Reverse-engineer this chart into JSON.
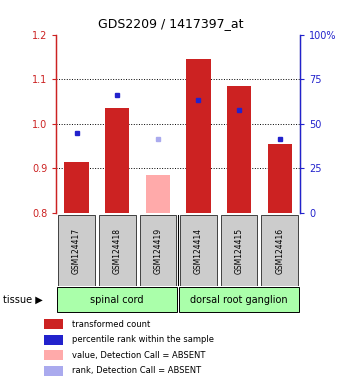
{
  "title": "GDS2209 / 1417397_at",
  "samples": [
    "GSM124417",
    "GSM124418",
    "GSM124419",
    "GSM124414",
    "GSM124415",
    "GSM124416"
  ],
  "bar_values": [
    0.915,
    1.035,
    0.885,
    1.145,
    1.085,
    0.955
  ],
  "bar_colors": [
    "#cc2222",
    "#cc2222",
    "#ffaaaa",
    "#cc2222",
    "#cc2222",
    "#cc2222"
  ],
  "rank_values": [
    0.979,
    1.065,
    0.966,
    1.053,
    1.03,
    0.967
  ],
  "rank_colors": [
    "#2222cc",
    "#2222cc",
    "#aaaaee",
    "#2222cc",
    "#2222cc",
    "#2222cc"
  ],
  "ylim_left": [
    0.8,
    1.2
  ],
  "ylim_right": [
    0,
    100
  ],
  "yticks_left": [
    0.8,
    0.9,
    1.0,
    1.1,
    1.2
  ],
  "yticks_right": [
    0,
    25,
    50,
    75,
    100
  ],
  "yticklabels_right": [
    "0",
    "25",
    "50",
    "75",
    "100%"
  ],
  "tissue_groups": [
    {
      "label": "spinal cord",
      "start": 0,
      "end": 2
    },
    {
      "label": "dorsal root ganglion",
      "start": 3,
      "end": 5
    }
  ],
  "tissue_color": "#aaffaa",
  "bar_width": 0.6,
  "left_tick_color": "#cc2222",
  "right_tick_color": "#2222cc",
  "sample_box_color": "#cccccc",
  "grid_yticks": [
    0.9,
    1.0,
    1.1
  ],
  "legend_items": [
    {
      "color": "#cc2222",
      "label": "transformed count"
    },
    {
      "color": "#2222cc",
      "label": "percentile rank within the sample"
    },
    {
      "color": "#ffaaaa",
      "label": "value, Detection Call = ABSENT"
    },
    {
      "color": "#aaaaee",
      "label": "rank, Detection Call = ABSENT"
    }
  ]
}
